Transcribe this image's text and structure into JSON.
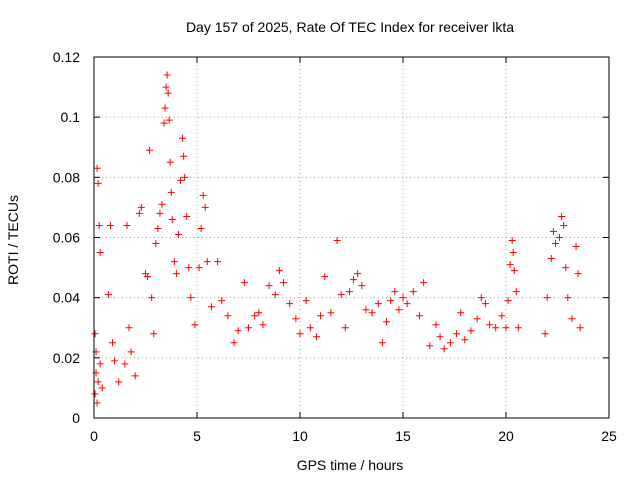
{
  "chart_data": {
    "type": "scatter",
    "title": "Day 157 of 2025, Rate Of TEC Index for receiver lkta",
    "xlabel": "GPS time / hours",
    "ylabel": "ROTI / TECUs",
    "xlim": [
      0,
      25
    ],
    "ylim": [
      0,
      0.12
    ],
    "x_ticks": [
      0,
      5,
      10,
      15,
      20,
      25
    ],
    "y_ticks": [
      0,
      0.02,
      0.04,
      0.06,
      0.08,
      0.1,
      0.12
    ],
    "x_tick_labels": [
      "0",
      "5",
      "10",
      "15",
      "20",
      "25"
    ],
    "y_tick_labels": [
      "0",
      "0.02",
      "0.04",
      "0.06",
      "0.08",
      "0.1",
      "0.12"
    ],
    "grid": true,
    "marker": "plus",
    "marker_color": "#ff0000",
    "series": [
      {
        "name": "ROTI",
        "points": [
          [
            0.05,
            0.028
          ],
          [
            0.1,
            0.022
          ],
          [
            0.15,
            0.083
          ],
          [
            0.2,
            0.078
          ],
          [
            0.25,
            0.064
          ],
          [
            0.3,
            0.055
          ],
          [
            0.1,
            0.015
          ],
          [
            0.2,
            0.012
          ],
          [
            0.05,
            0.008
          ],
          [
            0.3,
            0.018
          ],
          [
            0.4,
            0.01
          ],
          [
            0.15,
            0.005
          ],
          [
            0.8,
            0.064
          ],
          [
            0.7,
            0.041
          ],
          [
            0.9,
            0.025
          ],
          [
            1.0,
            0.019
          ],
          [
            1.2,
            0.012
          ],
          [
            1.5,
            0.018
          ],
          [
            1.6,
            0.064
          ],
          [
            1.7,
            0.03
          ],
          [
            1.8,
            0.022
          ],
          [
            2.0,
            0.014
          ],
          [
            2.2,
            0.068
          ],
          [
            2.3,
            0.07
          ],
          [
            2.5,
            0.048
          ],
          [
            2.6,
            0.047
          ],
          [
            2.8,
            0.04
          ],
          [
            2.9,
            0.028
          ],
          [
            3.0,
            0.058
          ],
          [
            3.1,
            0.063
          ],
          [
            2.7,
            0.089
          ],
          [
            3.2,
            0.068
          ],
          [
            3.3,
            0.071
          ],
          [
            3.4,
            0.098
          ],
          [
            3.45,
            0.103
          ],
          [
            3.5,
            0.11
          ],
          [
            3.55,
            0.114
          ],
          [
            3.6,
            0.108
          ],
          [
            3.65,
            0.099
          ],
          [
            3.7,
            0.085
          ],
          [
            3.75,
            0.075
          ],
          [
            3.8,
            0.066
          ],
          [
            3.9,
            0.052
          ],
          [
            4.0,
            0.048
          ],
          [
            4.1,
            0.061
          ],
          [
            4.2,
            0.079
          ],
          [
            4.3,
            0.093
          ],
          [
            4.35,
            0.087
          ],
          [
            4.4,
            0.08
          ],
          [
            4.5,
            0.067
          ],
          [
            4.6,
            0.05
          ],
          [
            4.7,
            0.04
          ],
          [
            4.9,
            0.031
          ],
          [
            5.1,
            0.05
          ],
          [
            5.2,
            0.063
          ],
          [
            5.3,
            0.074
          ],
          [
            5.4,
            0.07
          ],
          [
            5.5,
            0.052
          ],
          [
            5.7,
            0.037
          ],
          [
            6.0,
            0.052
          ],
          [
            6.2,
            0.039
          ],
          [
            6.5,
            0.034
          ],
          [
            6.8,
            0.025
          ],
          [
            7.0,
            0.029
          ],
          [
            7.3,
            0.045
          ],
          [
            7.5,
            0.03
          ],
          [
            7.8,
            0.034
          ],
          [
            8.0,
            0.035
          ],
          [
            8.2,
            0.031
          ],
          [
            8.5,
            0.044
          ],
          [
            8.8,
            0.041
          ],
          [
            9.0,
            0.049
          ],
          [
            9.2,
            0.045
          ],
          [
            9.5,
            0.038
          ],
          [
            9.8,
            0.033
          ],
          [
            10.0,
            0.028
          ],
          [
            10.3,
            0.039
          ],
          [
            10.5,
            0.03
          ],
          [
            10.8,
            0.027
          ],
          [
            11.0,
            0.034
          ],
          [
            11.2,
            0.047
          ],
          [
            11.5,
            0.035
          ],
          [
            11.8,
            0.059
          ],
          [
            12.0,
            0.041
          ],
          [
            12.2,
            0.03
          ],
          [
            12.4,
            0.042
          ],
          [
            12.6,
            0.046
          ],
          [
            12.8,
            0.048
          ],
          [
            13.0,
            0.044
          ],
          [
            13.2,
            0.036
          ],
          [
            13.5,
            0.035
          ],
          [
            13.8,
            0.038
          ],
          [
            14.0,
            0.025
          ],
          [
            14.2,
            0.032
          ],
          [
            14.4,
            0.039
          ],
          [
            14.6,
            0.042
          ],
          [
            14.8,
            0.036
          ],
          [
            15.0,
            0.04
          ],
          [
            15.2,
            0.038
          ],
          [
            15.5,
            0.042
          ],
          [
            15.8,
            0.034
          ],
          [
            16.0,
            0.045
          ],
          [
            16.3,
            0.024
          ],
          [
            16.6,
            0.031
          ],
          [
            16.8,
            0.027
          ],
          [
            17.0,
            0.023
          ],
          [
            17.3,
            0.025
          ],
          [
            17.6,
            0.028
          ],
          [
            17.8,
            0.035
          ],
          [
            18.0,
            0.026
          ],
          [
            18.3,
            0.029
          ],
          [
            18.6,
            0.033
          ],
          [
            18.8,
            0.04
          ],
          [
            19.0,
            0.038
          ],
          [
            19.2,
            0.031
          ],
          [
            19.5,
            0.03
          ],
          [
            19.8,
            0.034
          ],
          [
            20.0,
            0.03
          ],
          [
            20.1,
            0.039
          ],
          [
            20.2,
            0.051
          ],
          [
            20.3,
            0.059
          ],
          [
            20.35,
            0.055
          ],
          [
            20.4,
            0.049
          ],
          [
            20.5,
            0.042
          ],
          [
            20.6,
            0.03
          ],
          [
            21.9,
            0.028
          ],
          [
            22.0,
            0.04
          ],
          [
            22.2,
            0.053
          ],
          [
            22.3,
            0.062
          ],
          [
            22.4,
            0.058
          ],
          [
            22.6,
            0.06
          ],
          [
            22.7,
            0.067
          ],
          [
            22.8,
            0.064
          ],
          [
            22.9,
            0.05
          ],
          [
            23.0,
            0.04
          ],
          [
            23.2,
            0.033
          ],
          [
            23.4,
            0.057
          ],
          [
            23.5,
            0.048
          ],
          [
            23.6,
            0.03
          ]
        ]
      }
    ]
  }
}
